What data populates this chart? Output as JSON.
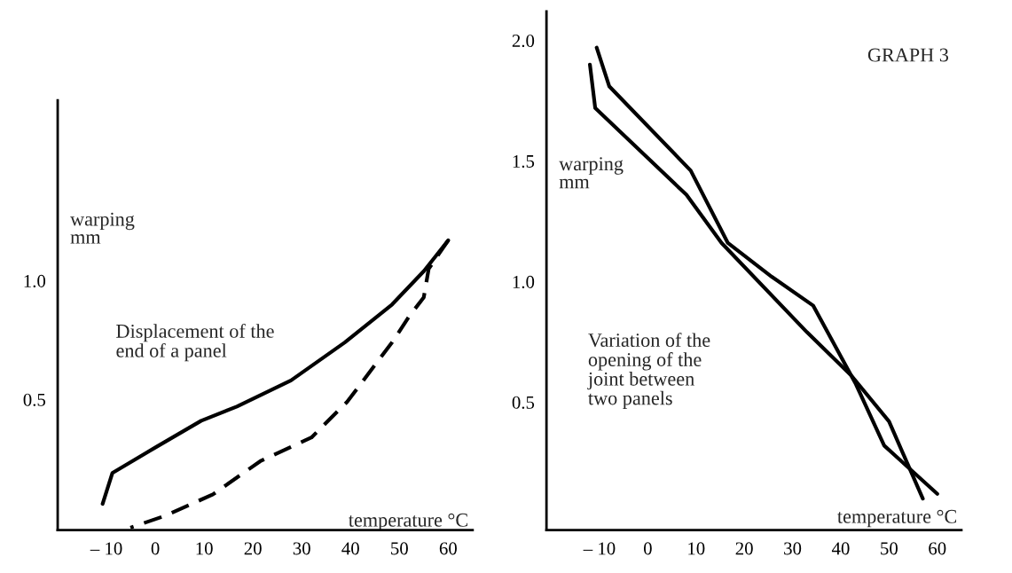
{
  "chart_data": [
    {
      "type": "line",
      "xlabel": "temperature °C",
      "ylabel": "warping\nmm",
      "xlim": [
        -20,
        65
      ],
      "ylim": [
        -0.05,
        1.76
      ],
      "xticks": [
        {
          "value": -10,
          "label": "– 10"
        },
        0,
        10,
        20,
        30,
        40,
        50,
        60
      ],
      "yticks": [
        {
          "value": 0.5,
          "label": "0.5"
        },
        {
          "value": 1.0,
          "label": "1.0"
        }
      ],
      "grid": false,
      "legend": false,
      "marker": "none",
      "annotations": [
        "Displacement of the\nend of a panel"
      ],
      "series": [
        {
          "color": "#000000",
          "line_style": "solid",
          "x": [
            -10.8,
            -8.8,
            0.2,
            9.4,
            16.7,
            27.8,
            38.8,
            48.5,
            55,
            60
          ],
          "values": [
            0.06,
            0.19,
            0.3,
            0.41,
            0.47,
            0.58,
            0.74,
            0.9,
            1.04,
            1.17
          ]
        },
        {
          "color": "#000000",
          "line_style": "dashed",
          "x": [
            60,
            56,
            55,
            52,
            48.5,
            39.3,
            32,
            21.5,
            11.8,
            2,
            -5.1
          ],
          "values": [
            1.17,
            1.05,
            0.93,
            0.85,
            0.74,
            0.49,
            0.34,
            0.24,
            0.1,
            0.01,
            -0.04
          ]
        }
      ]
    },
    {
      "type": "line",
      "xlabel": "temperature °C",
      "ylabel": "warping\nmm",
      "xlim": [
        -21,
        65
      ],
      "ylim": [
        -0.03,
        2.12
      ],
      "xticks": [
        {
          "value": -10,
          "label": "– 10"
        },
        0,
        10,
        20,
        30,
        40,
        50,
        60
      ],
      "yticks": [
        {
          "value": 0.5,
          "label": "0.5"
        },
        {
          "value": 1.0,
          "label": "1.0"
        },
        {
          "value": 1.5,
          "label": "1.5"
        },
        {
          "value": 2.0,
          "label": "2.0"
        }
      ],
      "grid": false,
      "legend": false,
      "marker": "none",
      "annotations": [
        "Variation of the\nopening of the\njoint between\ntwo panels",
        "GRAPH 3"
      ],
      "series": [
        {
          "color": "#000000",
          "line_style": "solid",
          "x": [
            -10.6,
            -8.0,
            8.9,
            16.6,
            25.7,
            34.3,
            43,
            49,
            60
          ],
          "values": [
            1.97,
            1.81,
            1.46,
            1.16,
            1.02,
            0.9,
            0.58,
            0.32,
            0.12
          ]
        },
        {
          "color": "#000000",
          "line_style": "solid",
          "x": [
            -12.0,
            -10.9,
            8.0,
            15.3,
            33,
            42.2,
            50,
            57
          ],
          "values": [
            1.9,
            1.72,
            1.36,
            1.16,
            0.79,
            0.61,
            0.42,
            0.1
          ]
        }
      ]
    }
  ]
}
